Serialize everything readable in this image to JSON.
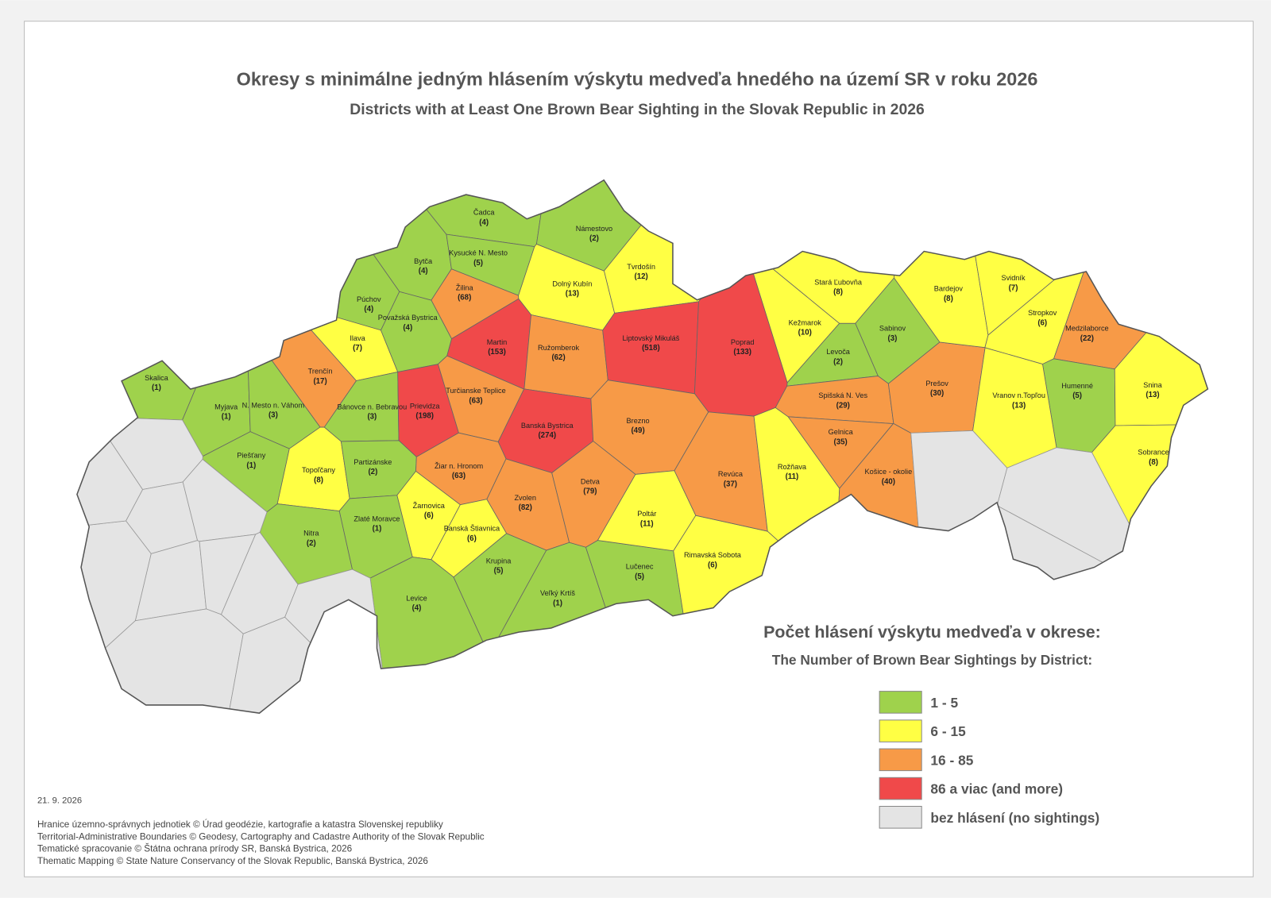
{
  "header": {
    "title": "Okresy s minimálne jedným hlásením výskytu medveďa hnedého na území SR v roku 2026",
    "subtitle": "Districts with at Least One Brown Bear Sighting in the Slovak Republic in 2026"
  },
  "districts": [
    {
      "name": "Skalica",
      "value": 1,
      "value_label": "(1)"
    },
    {
      "name": "Myjava",
      "value": 1,
      "value_label": "(1)"
    },
    {
      "name": "N. Mesto n. Váhom",
      "value": 3,
      "value_label": "(3)"
    },
    {
      "name": "Piešťany",
      "value": 1,
      "value_label": "(1)"
    },
    {
      "name": "Trenčín",
      "value": 17,
      "value_label": "(17)"
    },
    {
      "name": "Púchov",
      "value": 4,
      "value_label": "(4)"
    },
    {
      "name": "Ilava",
      "value": 7,
      "value_label": "(7)"
    },
    {
      "name": "Považská Bystrica",
      "value": 4,
      "value_label": "(4)"
    },
    {
      "name": "Bytča",
      "value": 4,
      "value_label": "(4)"
    },
    {
      "name": "Čadca",
      "value": 4,
      "value_label": "(4)"
    },
    {
      "name": "Kysucké N. Mesto",
      "value": 5,
      "value_label": "(5)"
    },
    {
      "name": "Žilina",
      "value": 68,
      "value_label": "(68)"
    },
    {
      "name": "Námestovo",
      "value": 2,
      "value_label": "(2)"
    },
    {
      "name": "Tvrdošín",
      "value": 12,
      "value_label": "(12)"
    },
    {
      "name": "Dolný Kubín",
      "value": 13,
      "value_label": "(13)"
    },
    {
      "name": "Martin",
      "value": 153,
      "value_label": "(153)"
    },
    {
      "name": "Ružomberok",
      "value": 62,
      "value_label": "(62)"
    },
    {
      "name": "Liptovský Mikuláš",
      "value": 518,
      "value_label": "(518)"
    },
    {
      "name": "Poprad",
      "value": 133,
      "value_label": "(133)"
    },
    {
      "name": "Bánovce n. Bebravou",
      "value": 3,
      "value_label": "(3)"
    },
    {
      "name": "Prievidza",
      "value": 198,
      "value_label": "(198)"
    },
    {
      "name": "Turčianske Teplice",
      "value": 63,
      "value_label": "(63)"
    },
    {
      "name": "Banská Bystrica",
      "value": 274,
      "value_label": "(274)"
    },
    {
      "name": "Brezno",
      "value": 49,
      "value_label": "(49)"
    },
    {
      "name": "Topoľčany",
      "value": 8,
      "value_label": "(8)"
    },
    {
      "name": "Partizánske",
      "value": 2,
      "value_label": "(2)"
    },
    {
      "name": "Žiar n. Hronom",
      "value": 63,
      "value_label": "(63)"
    },
    {
      "name": "Žarnovica",
      "value": 6,
      "value_label": "(6)"
    },
    {
      "name": "Banská Štiavnica",
      "value": 6,
      "value_label": "(6)"
    },
    {
      "name": "Zvolen",
      "value": 82,
      "value_label": "(82)"
    },
    {
      "name": "Detva",
      "value": 79,
      "value_label": "(79)"
    },
    {
      "name": "Zlaté Moravce",
      "value": 1,
      "value_label": "(1)"
    },
    {
      "name": "Nitra",
      "value": 2,
      "value_label": "(2)"
    },
    {
      "name": "Levice",
      "value": 4,
      "value_label": "(4)"
    },
    {
      "name": "Krupina",
      "value": 5,
      "value_label": "(5)"
    },
    {
      "name": "Veľký Krtíš",
      "value": 1,
      "value_label": "(1)"
    },
    {
      "name": "Lučenec",
      "value": 5,
      "value_label": "(5)"
    },
    {
      "name": "Poltár",
      "value": 11,
      "value_label": "(11)"
    },
    {
      "name": "Rimavská Sobota",
      "value": 6,
      "value_label": "(6)"
    },
    {
      "name": "Revúca",
      "value": 37,
      "value_label": "(37)"
    },
    {
      "name": "Rožňava",
      "value": 11,
      "value_label": "(11)"
    },
    {
      "name": "Stará Ľubovňa",
      "value": 8,
      "value_label": "(8)"
    },
    {
      "name": "Kežmarok",
      "value": 10,
      "value_label": "(10)"
    },
    {
      "name": "Sabinov",
      "value": 3,
      "value_label": "(3)"
    },
    {
      "name": "Levoča",
      "value": 2,
      "value_label": "(2)"
    },
    {
      "name": "Spišská N. Ves",
      "value": 29,
      "value_label": "(29)"
    },
    {
      "name": "Gelnica",
      "value": 35,
      "value_label": "(35)"
    },
    {
      "name": "Košice - okolie",
      "value": 40,
      "value_label": "(40)"
    },
    {
      "name": "Prešov",
      "value": 30,
      "value_label": "(30)"
    },
    {
      "name": "Bardejov",
      "value": 8,
      "value_label": "(8)"
    },
    {
      "name": "Svidník",
      "value": 7,
      "value_label": "(7)"
    },
    {
      "name": "Stropkov",
      "value": 6,
      "value_label": "(6)"
    },
    {
      "name": "Medzilaborce",
      "value": 22,
      "value_label": "(22)"
    },
    {
      "name": "Humenné",
      "value": 5,
      "value_label": "(5)"
    },
    {
      "name": "Snina",
      "value": 13,
      "value_label": "(13)"
    },
    {
      "name": "Vranov n.Topľou",
      "value": 13,
      "value_label": "(13)"
    },
    {
      "name": "Sobrance",
      "value": 8,
      "value_label": "(8)"
    }
  ],
  "legend": {
    "title": "Počet hlásení výskytu medveďa v okrese:",
    "subtitle": "The Number of Brown Bear Sightings by District:",
    "classes": [
      {
        "label": "1 - 5",
        "min": 1,
        "max": 5,
        "color": "#9fd24c"
      },
      {
        "label": "6 - 15",
        "min": 6,
        "max": 15,
        "color": "#ffff44"
      },
      {
        "label": "16 - 85",
        "min": 16,
        "max": 85,
        "color": "#f79a47"
      },
      {
        "label": "86 a viac (and more)",
        "min": 86,
        "color": "#f0494a"
      },
      {
        "label": "bez hlásení  (no sightings)",
        "color": "#e4e4e4"
      }
    ]
  },
  "footer": {
    "date": "21. 9. 2026",
    "credits": [
      "Hranice územno-správnych jednotiek © Úrad geodézie, kartografie a katastra Slovenskej republiky",
      "Territorial-Administrative Boundaries © Geodesy, Cartography and Cadastre Authority of the Slovak Republic",
      "Tematické spracovanie © Štátna ochrana prírody SR, Banská Bystrica, 2026",
      "Thematic Mapping © State Nature Conservancy of the Slovak Republic, Banská Bystrica, 2026"
    ]
  }
}
